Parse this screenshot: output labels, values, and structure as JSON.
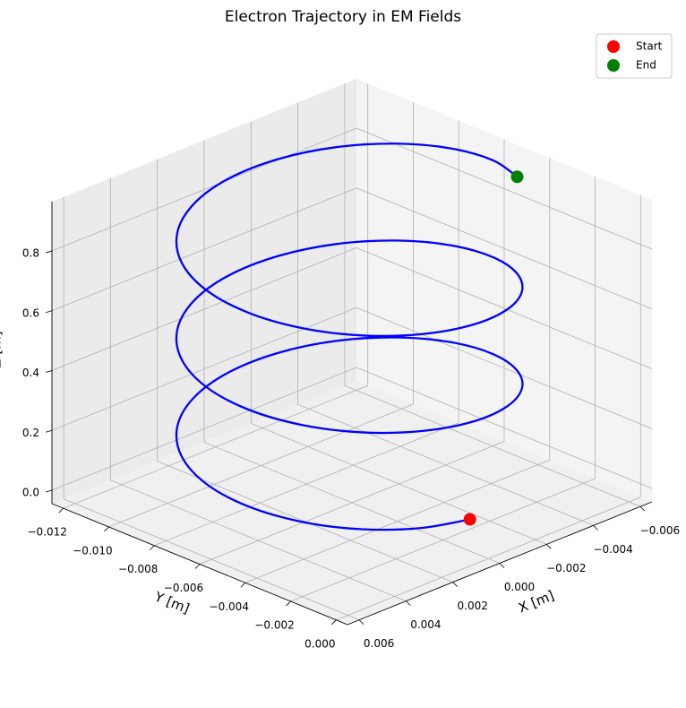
{
  "chart_data": {
    "type": "line3d",
    "title": "Electron Trajectory in EM Fields",
    "xlabel": "X [m]",
    "ylabel": "Y [m]",
    "zlabel": "Z [m]",
    "xlim": [
      -0.0065,
      0.0065
    ],
    "ylim": [
      -0.0125,
      0.0005
    ],
    "zlim": [
      -0.045,
      0.965
    ],
    "xticks": [
      {
        "value": -0.006,
        "label": "−0.006"
      },
      {
        "value": -0.004,
        "label": "−0.004"
      },
      {
        "value": -0.002,
        "label": "−0.002"
      },
      {
        "value": 0,
        "label": "0.000"
      },
      0.002,
      0.004,
      0.006
    ],
    "yticks": [
      {
        "value": -0.012,
        "label": "−0.012"
      },
      {
        "value": -0.01,
        "label": "−0.010"
      },
      {
        "value": -0.008,
        "label": "−0.008"
      },
      {
        "value": -0.006,
        "label": "−0.006"
      },
      {
        "value": -0.004,
        "label": "−0.004"
      },
      {
        "value": -0.002,
        "label": "−0.002"
      },
      {
        "value": 0,
        "label": "0.000"
      }
    ],
    "zticks": [
      {
        "value": 0,
        "label": "0.0"
      },
      0.2,
      0.4,
      0.6,
      0.8
    ],
    "grid": true,
    "legend": "upper right",
    "trajectory": {
      "color": "#0000ff",
      "x": [
        -0.00096,
        0.00085,
        0.00245,
        0.00363,
        0.00426,
        0.00426,
        0.00363,
        0.00245,
        0.00085,
        -0.00096,
        -0.00277,
        -0.00437,
        -0.00555,
        -0.00618,
        -0.00618,
        -0.00555,
        -0.00437,
        -0.00277,
        -0.00096,
        0.00085,
        0.00245,
        0.00363,
        0.00426,
        0.00426,
        0.00363,
        0.00245,
        0.00085,
        -0.00096,
        -0.00277,
        -0.00437,
        -0.00555,
        -0.00618,
        -0.00618,
        -0.00555,
        -0.00437,
        -0.00277,
        -0.00096,
        0.00085,
        0.00245,
        0.00363,
        0.00426,
        0.00426,
        0.00363,
        0.00245,
        0.00085,
        -0.00096,
        -0.00277,
        -0.00437,
        -0.00555,
        -0.00618,
        -0.00618,
        -0.00555
      ],
      "y": [
        -0.0018,
        -0.00212,
        -0.00304,
        -0.00445,
        -0.00618,
        -0.00802,
        -0.00975,
        -0.01116,
        -0.01208,
        -0.0124,
        -0.01208,
        -0.01116,
        -0.00975,
        -0.00802,
        -0.00618,
        -0.00445,
        -0.00304,
        -0.00212,
        -0.0018,
        -0.00212,
        -0.00304,
        -0.00445,
        -0.00618,
        -0.00802,
        -0.00975,
        -0.01116,
        -0.01208,
        -0.0124,
        -0.01208,
        -0.01116,
        -0.00975,
        -0.00802,
        -0.00618,
        -0.00445,
        -0.00304,
        -0.00212,
        -0.0018,
        -0.00212,
        -0.00304,
        -0.00445,
        -0.00618,
        -0.00802,
        -0.00975,
        -0.01116,
        -0.01208,
        -0.0124,
        -0.01208,
        -0.01116,
        -0.00975,
        -0.00802,
        -0.00618,
        -0.00445
      ],
      "z": [
        0,
        0.018,
        0.036,
        0.054,
        0.072,
        0.09,
        0.108,
        0.126,
        0.144,
        0.162,
        0.18,
        0.198,
        0.216,
        0.234,
        0.252,
        0.27,
        0.288,
        0.306,
        0.324,
        0.342,
        0.36,
        0.378,
        0.396,
        0.414,
        0.432,
        0.45,
        0.468,
        0.486,
        0.504,
        0.522,
        0.54,
        0.558,
        0.576,
        0.594,
        0.612,
        0.63,
        0.648,
        0.666,
        0.684,
        0.702,
        0.72,
        0.738,
        0.756,
        0.774,
        0.792,
        0.81,
        0.828,
        0.846,
        0.864,
        0.882,
        0.9,
        0.918
      ]
    },
    "markers": [
      {
        "name": "Start",
        "color": "#ff0000",
        "x": -0.00096,
        "y": -0.0018,
        "z": 0
      },
      {
        "name": "End",
        "color": "#008000",
        "x": -0.00555,
        "y": -0.00445,
        "z": 0.918
      }
    ]
  }
}
